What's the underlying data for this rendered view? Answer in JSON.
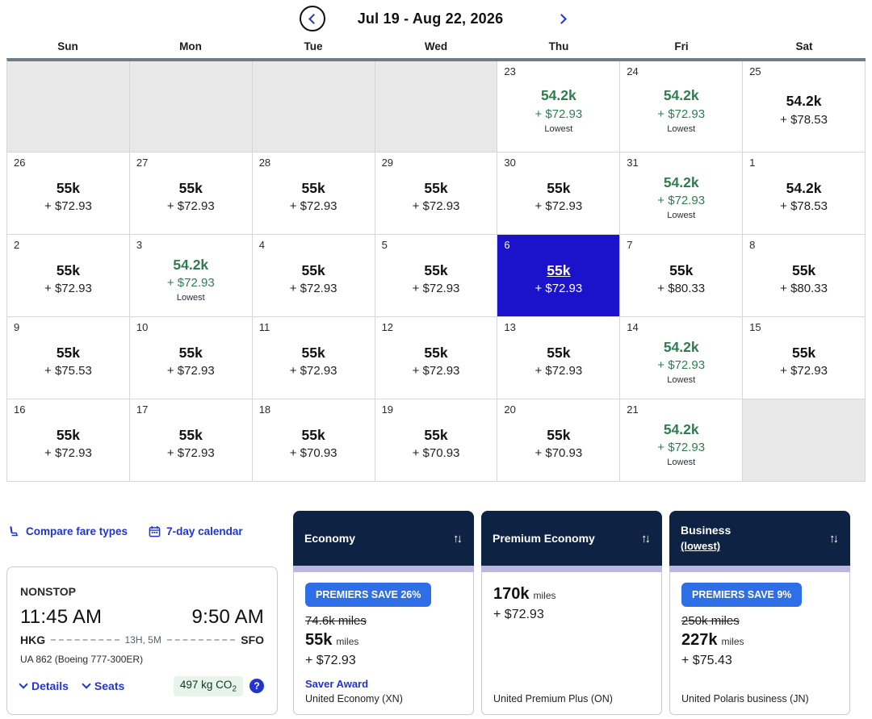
{
  "colors": {
    "navy": "#0e2343",
    "selected_blue": "#1b12cc",
    "link_blue": "#2134d2",
    "badge_blue": "#2e6fe8",
    "lowest_green": "#2e7d4f",
    "lavender_strip": "#bcb8dd"
  },
  "nav": {
    "date_range": "Jul 19 - Aug 22, 2026"
  },
  "calendar": {
    "day_headers": [
      "Sun",
      "Mon",
      "Tue",
      "Wed",
      "Thu",
      "Fri",
      "Sat"
    ],
    "weeks": [
      [
        {
          "state": "empty"
        },
        {
          "state": "empty"
        },
        {
          "state": "empty"
        },
        {
          "state": "empty"
        },
        {
          "day": "23",
          "miles": "54.2k",
          "fees": "+ $72.93",
          "tag": "Lowest",
          "state": "lowest"
        },
        {
          "day": "24",
          "miles": "54.2k",
          "fees": "+ $72.93",
          "tag": "Lowest",
          "state": "lowest"
        },
        {
          "day": "25",
          "miles": "54.2k",
          "fees": "+ $78.53",
          "state": "default"
        }
      ],
      [
        {
          "day": "26",
          "miles": "55k",
          "fees": "+ $72.93",
          "state": "default"
        },
        {
          "day": "27",
          "miles": "55k",
          "fees": "+ $72.93",
          "state": "default"
        },
        {
          "day": "28",
          "miles": "55k",
          "fees": "+ $72.93",
          "state": "default"
        },
        {
          "day": "29",
          "miles": "55k",
          "fees": "+ $72.93",
          "state": "default"
        },
        {
          "day": "30",
          "miles": "55k",
          "fees": "+ $72.93",
          "state": "default"
        },
        {
          "day": "31",
          "miles": "54.2k",
          "fees": "+ $72.93",
          "tag": "Lowest",
          "state": "lowest"
        },
        {
          "day": "1",
          "miles": "54.2k",
          "fees": "+ $78.53",
          "state": "default"
        }
      ],
      [
        {
          "day": "2",
          "miles": "55k",
          "fees": "+ $72.93",
          "state": "default"
        },
        {
          "day": "3",
          "miles": "54.2k",
          "fees": "+ $72.93",
          "tag": "Lowest",
          "state": "lowest"
        },
        {
          "day": "4",
          "miles": "55k",
          "fees": "+ $72.93",
          "state": "default"
        },
        {
          "day": "5",
          "miles": "55k",
          "fees": "+ $72.93",
          "state": "default"
        },
        {
          "day": "6",
          "miles": "55k",
          "fees": "+ $72.93",
          "state": "selected"
        },
        {
          "day": "7",
          "miles": "55k",
          "fees": "+ $80.33",
          "state": "default"
        },
        {
          "day": "8",
          "miles": "55k",
          "fees": "+ $80.33",
          "state": "default"
        }
      ],
      [
        {
          "day": "9",
          "miles": "55k",
          "fees": "+ $75.53",
          "state": "default"
        },
        {
          "day": "10",
          "miles": "55k",
          "fees": "+ $72.93",
          "state": "default"
        },
        {
          "day": "11",
          "miles": "55k",
          "fees": "+ $72.93",
          "state": "default"
        },
        {
          "day": "12",
          "miles": "55k",
          "fees": "+ $72.93",
          "state": "default"
        },
        {
          "day": "13",
          "miles": "55k",
          "fees": "+ $72.93",
          "state": "default"
        },
        {
          "day": "14",
          "miles": "54.2k",
          "fees": "+ $72.93",
          "tag": "Lowest",
          "state": "lowest"
        },
        {
          "day": "15",
          "miles": "55k",
          "fees": "+ $72.93",
          "state": "default"
        }
      ],
      [
        {
          "day": "16",
          "miles": "55k",
          "fees": "+ $72.93",
          "state": "default"
        },
        {
          "day": "17",
          "miles": "55k",
          "fees": "+ $72.93",
          "state": "default"
        },
        {
          "day": "18",
          "miles": "55k",
          "fees": "+ $70.93",
          "state": "default"
        },
        {
          "day": "19",
          "miles": "55k",
          "fees": "+ $70.93",
          "state": "default"
        },
        {
          "day": "20",
          "miles": "55k",
          "fees": "+ $70.93",
          "state": "default"
        },
        {
          "day": "21",
          "miles": "54.2k",
          "fees": "+ $72.93",
          "tag": "Lowest",
          "state": "lowest"
        },
        {
          "state": "empty"
        }
      ]
    ]
  },
  "toolbar": {
    "compare_label": "Compare fare types",
    "seven_day_label": "7-day calendar"
  },
  "flight": {
    "nonstop_label": "NONSTOP",
    "depart_time": "11:45 AM",
    "arrive_time": "9:50 AM",
    "origin": "HKG",
    "duration": "13H, 5M",
    "destination": "SFO",
    "flight_info": "UA 862 (Boeing 777-300ER)",
    "details_label": "Details",
    "seats_label": "Seats",
    "co2_value": "497 kg CO",
    "co2_sub": "2",
    "help_label": "?"
  },
  "fare_cards": {
    "economy": {
      "title": "Economy",
      "sort_icon": "↑↓",
      "badge": "PREMIERS SAVE 26%",
      "original": "74.6k miles",
      "miles": "55k",
      "miles_unit": "miles",
      "fees": "+ $72.93",
      "award_link": "Saver Award",
      "cabin": "United Economy (XN)"
    },
    "premium_economy": {
      "title": "Premium Economy",
      "sort_icon": "↑↓",
      "miles": "170k",
      "miles_unit": "miles",
      "fees": "+ $72.93",
      "cabin": "United Premium Plus (ON)"
    },
    "business": {
      "title": "Business",
      "subtitle": "(lowest)",
      "sort_icon": "↑↓",
      "badge": "PREMIERS SAVE 9%",
      "original": "250k miles",
      "miles": "227k",
      "miles_unit": "miles",
      "fees": "+ $75.43",
      "cabin": "United Polaris business (JN)"
    }
  }
}
